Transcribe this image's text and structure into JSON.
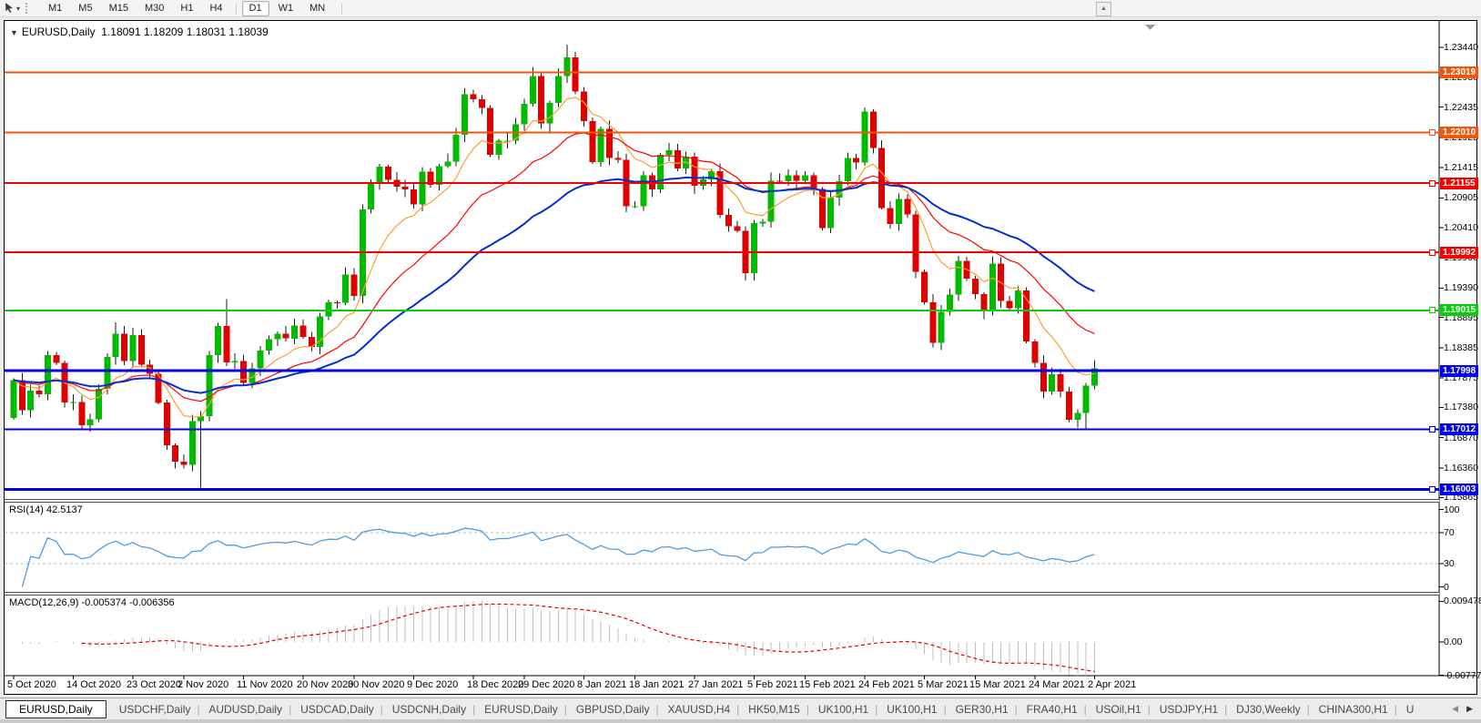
{
  "icons": {
    "pointer_tool": "pointer-cursor",
    "caret_down": "▾",
    "triangle_up": "▲",
    "marker_down": "▼",
    "arrow_left": "◀",
    "arrow_right": "▶"
  },
  "toolbar": {
    "timeframes": [
      "M1",
      "M5",
      "M15",
      "M30",
      "H1",
      "H4",
      "D1",
      "W1",
      "MN"
    ],
    "active_timeframe": "D1"
  },
  "chart": {
    "title_text": "EURUSD,Daily  1.18091 1.18209 1.18031 1.18039",
    "symbol": "EURUSD",
    "period": "Daily",
    "ohlc": {
      "open": "1.18091",
      "high": "1.18209",
      "low": "1.18031",
      "close": "1.18039"
    }
  },
  "rsi_panel": {
    "label": "RSI(14) 42.5137",
    "current_value": 42.5137,
    "axis_labels": [
      100,
      70,
      30,
      0
    ],
    "level_lines": [
      70,
      30
    ],
    "line_color": "#4E9CDE"
  },
  "macd_panel": {
    "label": "MACD(12,26,9) -0.005374 -0.006356",
    "main_value": -0.005374,
    "signal_value": -0.006356,
    "axis_labels": [
      {
        "text": "0.009478",
        "value": 0.009478
      },
      {
        "text": "0.00",
        "value": 0
      },
      {
        "text": "-0.007778",
        "value": -0.007778
      }
    ],
    "histogram_color": "#BFBFBF",
    "signal_color": "#E00000"
  },
  "chart_data": [
    {
      "type": "candlestick",
      "title": "EURUSD,Daily",
      "ylim": [
        1.159,
        1.2358
      ],
      "y_tick_labels": [
        "1.23440",
        "1.22930",
        "1.22435",
        "1.21925",
        "1.21415",
        "1.20905",
        "1.20410",
        "1.19900",
        "1.19390",
        "1.18895",
        "1.18385",
        "1.17875",
        "1.17380",
        "1.16870",
        "1.16360",
        "1.15865"
      ],
      "x_tick_labels": [
        {
          "label": "5 Oct 2020",
          "i": 0
        },
        {
          "label": "14 Oct 2020",
          "i": 7
        },
        {
          "label": "23 Oct 2020",
          "i": 14
        },
        {
          "label": "2 Nov 2020",
          "i": 20
        },
        {
          "label": "11 Nov 2020",
          "i": 27
        },
        {
          "label": "20 Nov 2020",
          "i": 34
        },
        {
          "label": "30 Nov 2020",
          "i": 40
        },
        {
          "label": "9 Dec 2020",
          "i": 47
        },
        {
          "label": "18 Dec 2020",
          "i": 54
        },
        {
          "label": "29 Dec 2020",
          "i": 60
        },
        {
          "label": "8 Jan 2021",
          "i": 67
        },
        {
          "label": "18 Jan 2021",
          "i": 73
        },
        {
          "label": "27 Jan 2021",
          "i": 80
        },
        {
          "label": "5 Feb 2021",
          "i": 87
        },
        {
          "label": "15 Feb 2021",
          "i": 93
        },
        {
          "label": "24 Feb 2021",
          "i": 100
        },
        {
          "label": "5 Mar 2021",
          "i": 107
        },
        {
          "label": "15 Mar 2021",
          "i": 113
        },
        {
          "label": "24 Mar 2021",
          "i": 120
        },
        {
          "label": "2 Apr 2021",
          "i": 127
        }
      ],
      "first_open": 1.172,
      "closes": [
        1.1784,
        1.1733,
        1.1766,
        1.176,
        1.1826,
        1.1813,
        1.1746,
        1.1747,
        1.1708,
        1.1718,
        1.1769,
        1.1823,
        1.1862,
        1.1816,
        1.186,
        1.181,
        1.1795,
        1.1746,
        1.1674,
        1.1647,
        1.1641,
        1.1715,
        1.1723,
        1.1826,
        1.1875,
        1.1814,
        1.1816,
        1.1779,
        1.1804,
        1.1834,
        1.1853,
        1.1862,
        1.1854,
        1.1876,
        1.1857,
        1.184,
        1.1891,
        1.1915,
        1.1914,
        1.1962,
        1.1926,
        1.2071,
        1.2115,
        1.2143,
        1.2121,
        1.211,
        1.2105,
        1.208,
        1.2135,
        1.2113,
        1.2144,
        1.2152,
        1.2197,
        1.2265,
        1.2257,
        1.2242,
        1.2163,
        1.2187,
        1.2187,
        1.2215,
        1.2249,
        1.2296,
        1.2216,
        1.2251,
        1.2296,
        1.2327,
        1.227,
        1.222,
        1.2151,
        1.2207,
        1.2158,
        1.2155,
        1.2077,
        1.2077,
        1.2129,
        1.2105,
        1.2163,
        1.2171,
        1.214,
        1.216,
        1.2111,
        1.2122,
        1.2136,
        1.2062,
        1.2043,
        1.2035,
        1.1964,
        1.2048,
        1.2051,
        1.212,
        1.2119,
        1.2129,
        1.212,
        1.2129,
        1.2106,
        1.204,
        1.2091,
        1.2119,
        1.2158,
        1.215,
        1.2236,
        1.2175,
        1.2074,
        1.2047,
        1.2089,
        1.2063,
        1.1966,
        1.1915,
        1.1847,
        1.1899,
        1.1928,
        1.1985,
        1.1955,
        1.1929,
        1.19,
        1.198,
        1.1917,
        1.1905,
        1.1935,
        1.1849,
        1.1813,
        1.1765,
        1.1794,
        1.1765,
        1.1717,
        1.1729,
        1.1775,
        1.1804
      ],
      "extreme_overrides": {
        "12": {
          "high": 1.1881
        },
        "22": {
          "low": 1.1603
        },
        "25": {
          "high": 1.192
        },
        "61": {
          "high": 1.2311
        },
        "65": {
          "high": 1.2349
        },
        "86": {
          "low": 1.1952
        },
        "100": {
          "high": 1.2243
        },
        "125": {
          "low": 1.17045
        },
        "126": {
          "low": 1.1703
        }
      },
      "up_color": "#00BB00",
      "down_color": "#E00000",
      "moving_averages": [
        {
          "name": "fast-ma",
          "method": "ema",
          "period": 9,
          "color": "#FF9E2E",
          "width": 1.2
        },
        {
          "name": "medium-ma",
          "method": "ema",
          "period": 21,
          "color": "#FF0000",
          "width": 1.2
        },
        {
          "name": "slow-ma",
          "method": "ema",
          "period": 40,
          "color": "#0030D0",
          "width": 2
        }
      ],
      "horizontal_lines": [
        {
          "price": "1.23019",
          "value": 1.23019,
          "color": "#F2560A",
          "width": 2,
          "handle": false
        },
        {
          "price": "1.22010",
          "value": 1.2201,
          "color": "#F2560A",
          "width": 2,
          "handle": true
        },
        {
          "price": "1.21155",
          "value": 1.21155,
          "color": "#F50000",
          "width": 2,
          "handle": true
        },
        {
          "price": "1.19992",
          "value": 1.19992,
          "color": "#F50000",
          "width": 2,
          "handle": true
        },
        {
          "price": "1.19015",
          "value": 1.19015,
          "color": "#0DCC0D",
          "width": 2,
          "handle": true
        },
        {
          "price": "1.17998",
          "value": 1.17998,
          "color": "#0000E8",
          "width": 3,
          "handle": false
        },
        {
          "price": "1.17012",
          "value": 1.17012,
          "color": "#0000E8",
          "width": 2,
          "handle": true
        },
        {
          "price": "1.16003",
          "value": 1.16003,
          "color": "#0000E8",
          "width": 3,
          "handle": true
        }
      ]
    },
    {
      "type": "line",
      "name": "RSI(14)",
      "ylim": [
        0,
        100
      ],
      "current": 42.5137,
      "levels": [
        70,
        30
      ]
    },
    {
      "type": "bar",
      "name": "MACD(12,26,9)",
      "main": -0.005374,
      "signal": -0.006356,
      "ylim": [
        -0.0082,
        0.0098
      ]
    }
  ],
  "tabs": {
    "items": [
      {
        "label": "EURUSD,Daily",
        "active": true
      },
      {
        "label": "USDCHF,Daily",
        "active": false
      },
      {
        "label": "AUDUSD,Daily",
        "active": false
      },
      {
        "label": "USDCAD,Daily",
        "active": false
      },
      {
        "label": "USDCNH,Daily",
        "active": false
      },
      {
        "label": "EURUSD,Daily",
        "active": false
      },
      {
        "label": "GBPUSD,Daily",
        "active": false
      },
      {
        "label": "XAUUSD,H4",
        "active": false
      },
      {
        "label": "HK50,M15",
        "active": false
      },
      {
        "label": "UK100,H1",
        "active": false
      },
      {
        "label": "UK100,H1",
        "active": false
      },
      {
        "label": "GER30,H1",
        "active": false
      },
      {
        "label": "FRA40,H1",
        "active": false
      },
      {
        "label": "USOil,H1",
        "active": false
      },
      {
        "label": "USDJPY,H1",
        "active": false
      },
      {
        "label": "DJ30,Weekly",
        "active": false
      },
      {
        "label": "CHINA300,H1",
        "active": false
      },
      {
        "label": "U",
        "active": false,
        "partial": true
      }
    ]
  }
}
